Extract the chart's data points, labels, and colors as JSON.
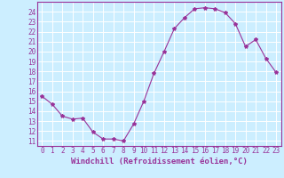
{
  "x": [
    0,
    1,
    2,
    3,
    4,
    5,
    6,
    7,
    8,
    9,
    10,
    11,
    12,
    13,
    14,
    15,
    16,
    17,
    18,
    19,
    20,
    21,
    22,
    23
  ],
  "y": [
    15.5,
    14.7,
    13.5,
    13.2,
    13.3,
    11.9,
    11.2,
    11.2,
    11.0,
    12.7,
    15.0,
    17.8,
    20.0,
    22.3,
    23.4,
    24.3,
    24.4,
    24.3,
    23.9,
    22.8,
    20.5,
    21.2,
    19.3,
    17.9
  ],
  "line_color": "#993399",
  "marker": "*",
  "marker_size": 3,
  "bg_color": "#cceeff",
  "grid_color": "#ffffff",
  "xlabel": "Windchill (Refroidissement éolien,°C)",
  "xlim": [
    -0.5,
    23.5
  ],
  "ylim": [
    10.5,
    25.0
  ],
  "yticks": [
    11,
    12,
    13,
    14,
    15,
    16,
    17,
    18,
    19,
    20,
    21,
    22,
    23,
    24
  ],
  "xticks": [
    0,
    1,
    2,
    3,
    4,
    5,
    6,
    7,
    8,
    9,
    10,
    11,
    12,
    13,
    14,
    15,
    16,
    17,
    18,
    19,
    20,
    21,
    22,
    23
  ],
  "xlabel_fontsize": 6.5,
  "tick_fontsize": 5.5,
  "label_color": "#993399",
  "spine_color": "#993399",
  "lw": 0.8
}
